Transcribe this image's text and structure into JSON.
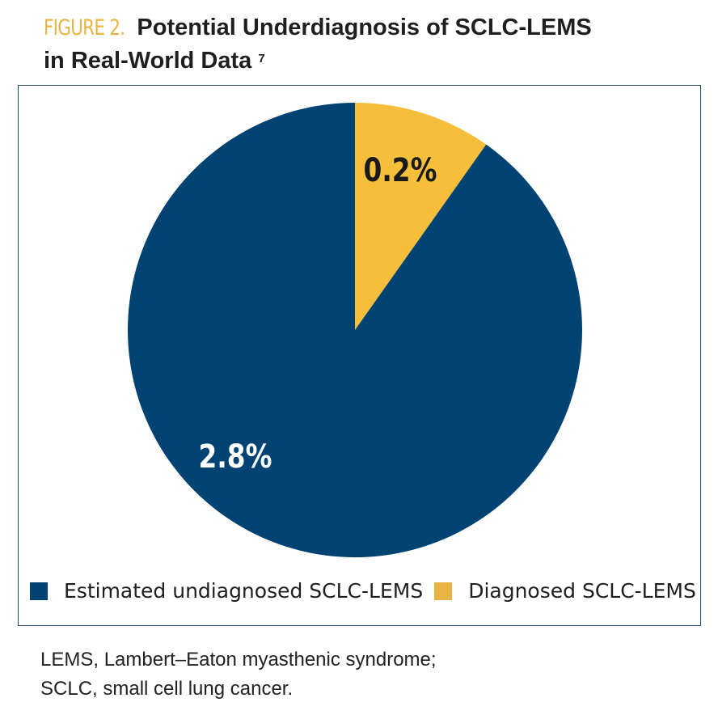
{
  "header": {
    "figure_label": "FIGURE 2.",
    "title_line1": "Potential Underdiagnosis of SCLC-LEMS",
    "title_line2": "in Real-World Data",
    "superscript": "7"
  },
  "chart_data": {
    "type": "pie",
    "title": "Potential Underdiagnosis of SCLC-LEMS in Real-World Data",
    "slices": [
      {
        "name": "Diagnosed SCLC-LEMS",
        "value": 0.2,
        "label": "0.2%",
        "color": "#f5be3b"
      },
      {
        "name": "Estimated undiagnosed SCLC-LEMS",
        "value": 2.8,
        "label": "2.8%",
        "color": "#004373"
      }
    ],
    "legend": [
      {
        "label": "Estimated undiagnosed SCLC-LEMS",
        "color": "#004373"
      },
      {
        "label": "Diagnosed SCLC-LEMS",
        "color": "#e8b542"
      }
    ],
    "legend_position": "bottom"
  },
  "footnote": {
    "line1": "LEMS, Lambert–Eaton myasthenic syndrome;",
    "line2": "SCLC, small cell lung cancer."
  }
}
